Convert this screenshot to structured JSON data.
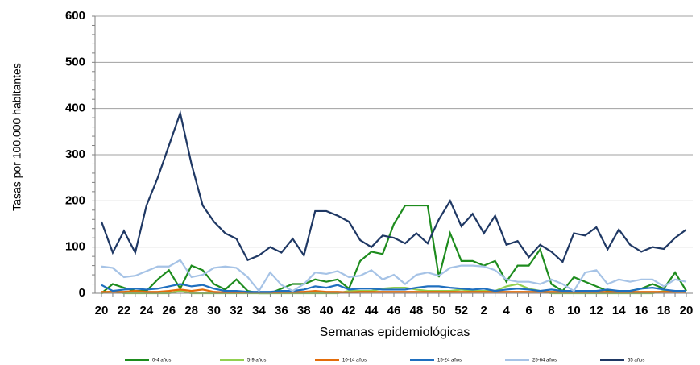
{
  "chart_data": {
    "type": "line",
    "y_label": "Tasas por 100.000 habitantes",
    "x_label": "Semanas epidemiológicas",
    "categories": [
      "20",
      null,
      "22",
      null,
      "24",
      null,
      "26",
      null,
      "28",
      null,
      "30",
      null,
      "32",
      null,
      "34",
      null,
      "36",
      null,
      "38",
      null,
      "40",
      null,
      "42",
      null,
      "44",
      null,
      "46",
      null,
      "48",
      null,
      "50",
      null,
      "52",
      null,
      "2",
      null,
      "4",
      null,
      "6",
      null,
      "8",
      null,
      "10",
      null,
      "12",
      null,
      "14",
      null,
      "16",
      null,
      "18",
      null,
      "20"
    ],
    "ylim": [
      0,
      600
    ],
    "yticks": [
      0,
      100,
      200,
      300,
      400,
      500,
      600
    ],
    "grid": true,
    "legend": "bottom",
    "series": [
      {
        "name": "0-4 años",
        "color": "#1e8c1e",
        "values": [
          0,
          20,
          12,
          5,
          5,
          30,
          50,
          10,
          60,
          50,
          20,
          8,
          30,
          5,
          0,
          0,
          10,
          20,
          20,
          30,
          25,
          30,
          10,
          70,
          90,
          85,
          150,
          190,
          190,
          190,
          35,
          130,
          70,
          70,
          60,
          70,
          25,
          60,
          60,
          95,
          20,
          5,
          35,
          25,
          15,
          5,
          0,
          5,
          10,
          20,
          10,
          45,
          5
        ]
      },
      {
        "name": "5-9 años",
        "color": "#92d050",
        "values": [
          0,
          5,
          0,
          0,
          0,
          0,
          0,
          5,
          0,
          0,
          0,
          0,
          0,
          0,
          0,
          0,
          0,
          0,
          0,
          0,
          0,
          0,
          5,
          5,
          5,
          10,
          12,
          12,
          8,
          5,
          5,
          5,
          8,
          5,
          5,
          5,
          15,
          20,
          10,
          5,
          0,
          0,
          0,
          0,
          0,
          0,
          0,
          0,
          0,
          0,
          5,
          5,
          5
        ]
      },
      {
        "name": "10-14 años",
        "color": "#e36c0a",
        "values": [
          3,
          3,
          3,
          5,
          3,
          3,
          5,
          8,
          5,
          8,
          3,
          2,
          2,
          2,
          2,
          2,
          3,
          3,
          3,
          5,
          3,
          3,
          2,
          3,
          3,
          3,
          3,
          3,
          3,
          3,
          3,
          3,
          3,
          3,
          3,
          3,
          3,
          3,
          3,
          3,
          3,
          3,
          3,
          3,
          3,
          3,
          3,
          3,
          3,
          3,
          3,
          3,
          3
        ]
      },
      {
        "name": "15-24 años",
        "color": "#1f6fbf",
        "values": [
          18,
          5,
          8,
          10,
          8,
          10,
          15,
          20,
          15,
          18,
          10,
          5,
          5,
          3,
          3,
          3,
          5,
          5,
          8,
          15,
          12,
          18,
          8,
          10,
          10,
          8,
          8,
          8,
          12,
          15,
          15,
          12,
          10,
          8,
          10,
          5,
          8,
          10,
          8,
          5,
          8,
          5,
          5,
          5,
          5,
          8,
          5,
          5,
          10,
          12,
          8,
          5,
          5
        ]
      },
      {
        "name": "25-64 años",
        "color": "#a6c3e6",
        "values": [
          58,
          55,
          35,
          38,
          48,
          58,
          58,
          72,
          35,
          40,
          55,
          58,
          55,
          35,
          5,
          45,
          18,
          5,
          20,
          45,
          42,
          48,
          35,
          38,
          50,
          30,
          40,
          20,
          40,
          45,
          38,
          55,
          60,
          60,
          58,
          50,
          30,
          25,
          25,
          20,
          30,
          20,
          5,
          45,
          50,
          20,
          30,
          25,
          30,
          30,
          15,
          30,
          25
        ]
      },
      {
        "name": "65 años",
        "color": "#1f3864",
        "values": [
          155,
          88,
          135,
          88,
          190,
          250,
          320,
          390,
          280,
          190,
          155,
          130,
          118,
          72,
          82,
          100,
          88,
          118,
          82,
          178,
          178,
          168,
          155,
          115,
          100,
          125,
          120,
          108,
          130,
          108,
          160,
          200,
          145,
          172,
          130,
          168,
          105,
          113,
          78,
          105,
          90,
          68,
          130,
          125,
          143,
          95,
          138,
          105,
          90,
          100,
          96,
          120,
          138
        ]
      }
    ]
  }
}
